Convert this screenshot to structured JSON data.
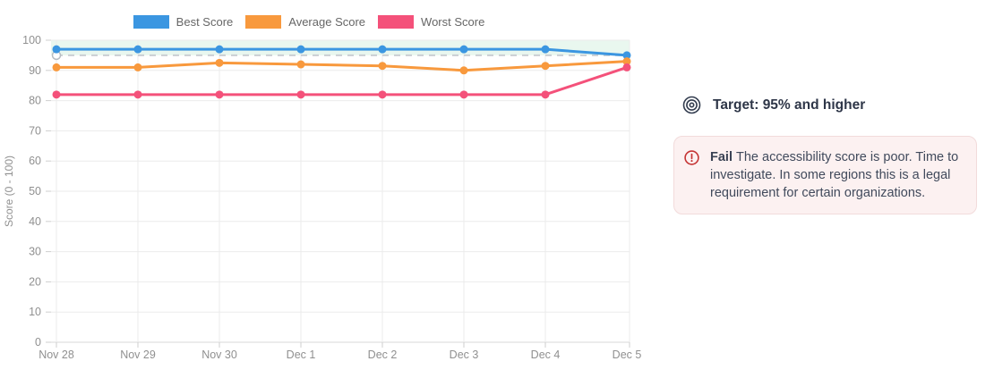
{
  "chart_data": {
    "type": "line",
    "title": "",
    "xlabel": "",
    "ylabel": "Score (0 - 100)",
    "ylim": [
      0,
      100
    ],
    "y_ticks": [
      0,
      10,
      20,
      30,
      40,
      50,
      60,
      70,
      80,
      90,
      100
    ],
    "categories": [
      "Nov 28",
      "Nov 29",
      "Nov 30",
      "Dec 1",
      "Dec 2",
      "Dec 3",
      "Dec 4",
      "Dec 5"
    ],
    "series": [
      {
        "name": "Best Score",
        "color": "#3b96e1",
        "values": [
          97,
          97,
          97,
          97,
          97,
          97,
          97,
          95
        ]
      },
      {
        "name": "Average Score",
        "color": "#f8993d",
        "values": [
          91,
          91,
          92.5,
          92,
          91.5,
          90,
          91.5,
          93
        ]
      },
      {
        "name": "Worst Score",
        "color": "#f4517a",
        "values": [
          82,
          82,
          82,
          82,
          82,
          82,
          82,
          91
        ]
      }
    ],
    "target": {
      "value": 95,
      "band_max": 100,
      "line_color": "#c9ced3",
      "band_color": "#e9f7ef",
      "marker_stroke": "#b6bcc2"
    },
    "grid": true,
    "legend_position": "top",
    "axis_text_color": "#909090",
    "grid_color": "#ebebeb",
    "axis_line_color": "#d8d8d8"
  },
  "target_note": {
    "label": "Target: 95% and higher"
  },
  "fail_alert": {
    "title": "Fail",
    "message": "The accessibility score is poor. Time to investigate. In some regions this is a legal requirement for certain organizations.",
    "icon_color": "#c53434"
  }
}
